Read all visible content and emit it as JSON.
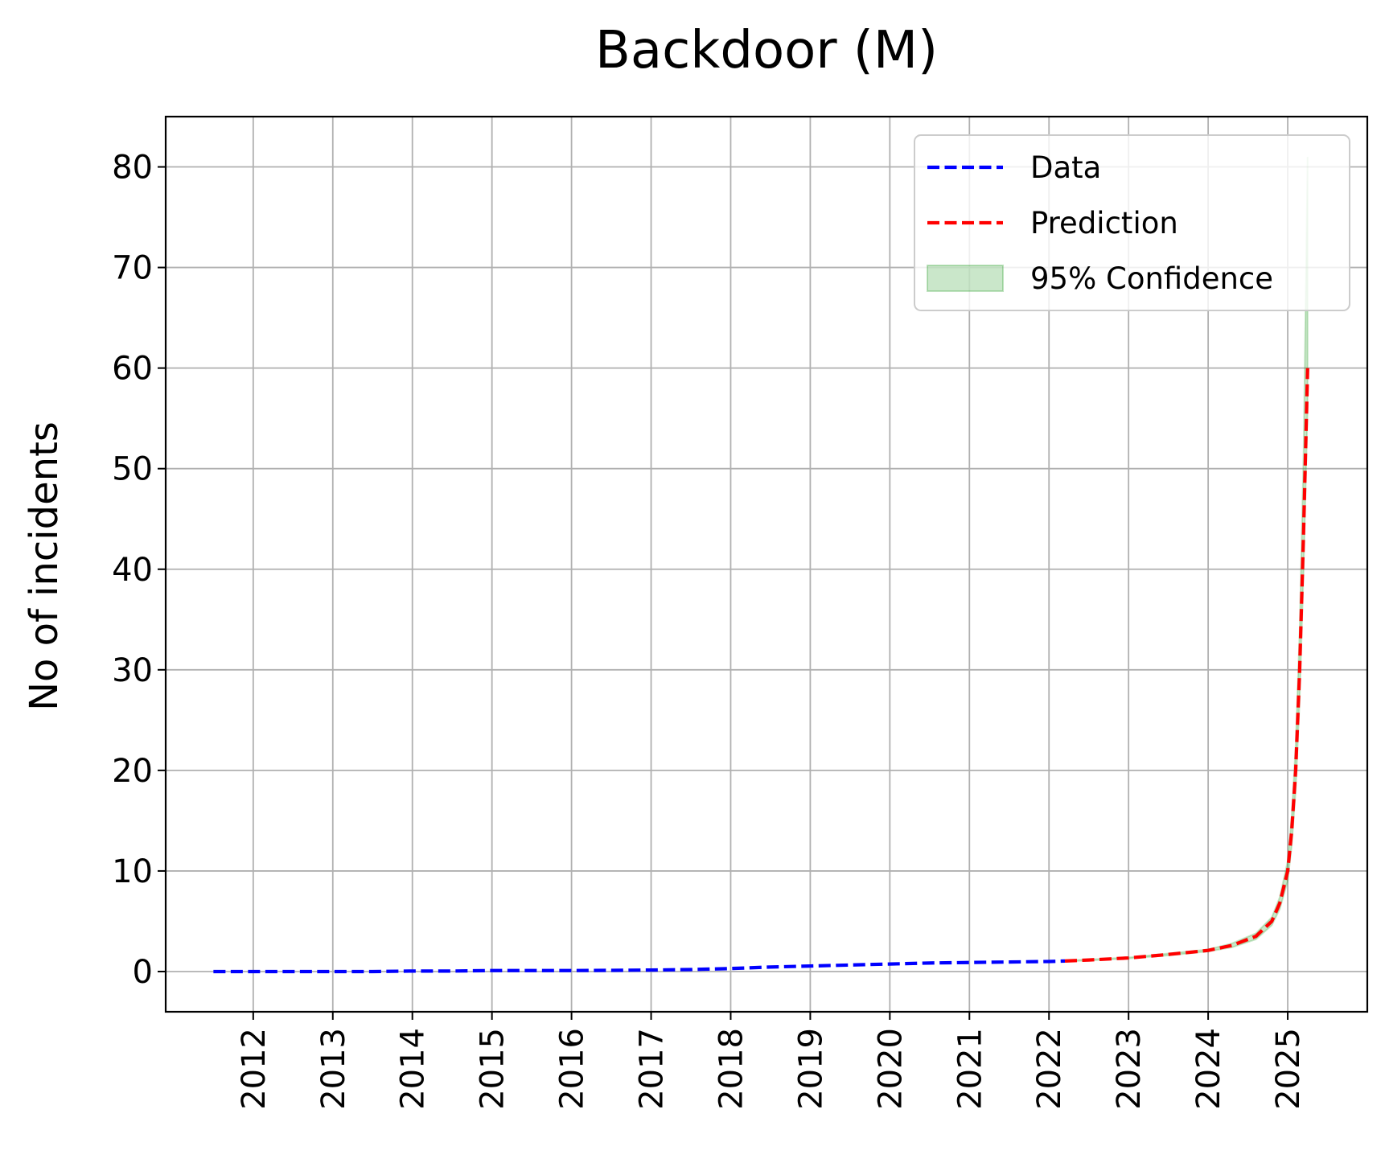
{
  "chart_data": {
    "type": "line",
    "title": "Backdoor (M)",
    "xlabel": "",
    "ylabel": "No of incidents",
    "x_axis": {
      "type": "date-years",
      "ticks": [
        "2012",
        "2013",
        "2014",
        "2015",
        "2016",
        "2017",
        "2018",
        "2019",
        "2020",
        "2021",
        "2022",
        "2023",
        "2024",
        "2025"
      ],
      "tick_rotation": "vertical"
    },
    "y_axis": {
      "ticks": [
        0,
        10,
        20,
        30,
        40,
        50,
        60,
        70,
        80
      ],
      "ylim": [
        -4,
        85
      ]
    },
    "xlim": [
      2010.9,
      2026.0
    ],
    "grid": true,
    "legend": {
      "placement": "top-right",
      "entries": [
        {
          "label": "Data",
          "kind": "dashed-line",
          "color": "#0000ff"
        },
        {
          "label": "Prediction",
          "kind": "dashed-line",
          "color": "#ff0000"
        },
        {
          "label": "95% Confidence",
          "kind": "patch",
          "color": "#2ca02c"
        }
      ]
    },
    "series": [
      {
        "name": "Data",
        "color": "#0000ff",
        "style": "dashed",
        "x": [
          2011.5,
          2012.0,
          2012.5,
          2013.0,
          2013.5,
          2014.0,
          2014.5,
          2015.0,
          2015.5,
          2016.0,
          2016.5,
          2017.0,
          2017.5,
          2018.0,
          2018.5,
          2019.0,
          2019.5,
          2020.0,
          2020.5,
          2021.0,
          2021.5,
          2022.0,
          2022.2
        ],
        "y": [
          0.0,
          0.0,
          0.0,
          0.0,
          0.0,
          0.05,
          0.05,
          0.1,
          0.1,
          0.1,
          0.12,
          0.15,
          0.2,
          0.3,
          0.45,
          0.55,
          0.65,
          0.75,
          0.85,
          0.9,
          0.95,
          1.0,
          1.05
        ]
      },
      {
        "name": "Prediction",
        "color": "#ff0000",
        "style": "dashed",
        "x": [
          2022.2,
          2022.5,
          2023.0,
          2023.5,
          2024.0,
          2024.3,
          2024.6,
          2024.8,
          2024.9,
          2025.0,
          2025.05,
          2025.1,
          2025.15,
          2025.2,
          2025.25
        ],
        "y": [
          1.05,
          1.15,
          1.35,
          1.7,
          2.1,
          2.6,
          3.5,
          5.0,
          6.8,
          10.0,
          14.0,
          20.0,
          30.0,
          44.0,
          60.0
        ]
      }
    ],
    "confidence_band": {
      "name": "95% Confidence",
      "color": "#2ca02c",
      "opacity": 0.25,
      "x": [
        2022.2,
        2022.5,
        2023.0,
        2023.5,
        2024.0,
        2024.3,
        2024.6,
        2024.8,
        2024.9,
        2025.0,
        2025.05,
        2025.1,
        2025.15,
        2025.2,
        2025.25
      ],
      "lower": [
        1.0,
        1.1,
        1.3,
        1.6,
        2.0,
        2.4,
        3.2,
        4.6,
        6.2,
        9.0,
        12.5,
        18.0,
        27.0,
        40.0,
        56.0
      ],
      "upper": [
        1.1,
        1.2,
        1.4,
        1.8,
        2.2,
        2.8,
        3.8,
        5.4,
        7.4,
        11.0,
        15.5,
        22.5,
        34.0,
        52.0,
        81.0
      ]
    }
  }
}
